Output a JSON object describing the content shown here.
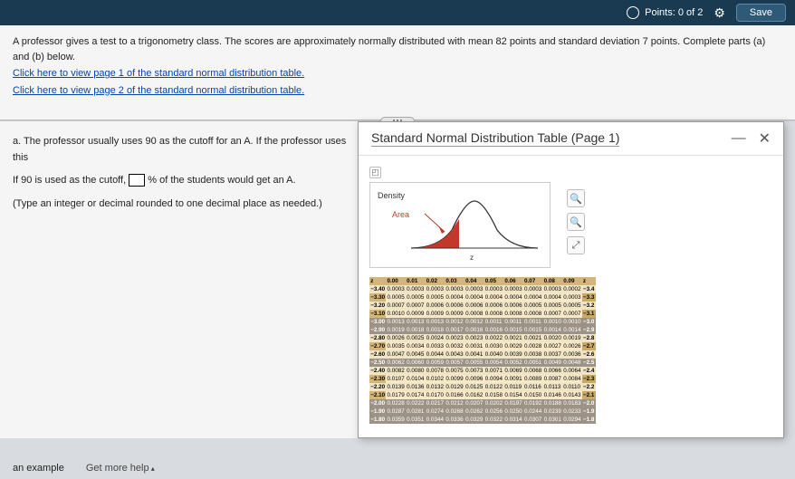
{
  "topbar": {
    "points": "Points: 0 of 2",
    "save": "Save"
  },
  "question": {
    "intro": "A professor gives a test to a trigonometry class. The scores are approximately normally distributed with mean 82 points and standard deviation 7 points. Complete parts (a) and (b) below.",
    "link1": "Click here to view page 1 of the standard normal distribution table.",
    "link2": "Click here to view page 2 of the standard normal distribution table.",
    "part_a": "a. The professor usually uses 90 as the cutoff for an A. If the professor uses this",
    "fill_pre": "If 90 is used as the cutoff, ",
    "fill_post": "% of the students would get an A.",
    "hint": "(Type an integer or decimal rounded to one decimal place as needed.)"
  },
  "popup": {
    "title": "Standard Normal Distribution Table (Page 1)",
    "density": "Density",
    "area": "Area",
    "z": "z"
  },
  "chart": {
    "curve_stroke": "#333",
    "curve_width": 1.2,
    "fill_color": "#c0392b",
    "arrow_color": "#c0392b",
    "bg": "#ffffff",
    "border": "#ccc"
  },
  "ztable": {
    "headers": [
      "z",
      "0.00",
      "0.01",
      "0.02",
      "0.03",
      "0.04",
      "0.05",
      "0.06",
      "0.07",
      "0.08",
      "0.09",
      "z"
    ],
    "rows": [
      {
        "z": "−3.40",
        "v": [
          "0.0003",
          "0.0003",
          "0.0003",
          "0.0003",
          "0.0003",
          "0.0003",
          "0.0003",
          "0.0003",
          "0.0003",
          "0.0002"
        ],
        "rz": "−3.4"
      },
      {
        "z": "−3.30",
        "v": [
          "0.0005",
          "0.0005",
          "0.0005",
          "0.0004",
          "0.0004",
          "0.0004",
          "0.0004",
          "0.0004",
          "0.0004",
          "0.0003"
        ],
        "rz": "−3.3"
      },
      {
        "z": "−3.20",
        "v": [
          "0.0007",
          "0.0007",
          "0.0006",
          "0.0006",
          "0.0006",
          "0.0006",
          "0.0006",
          "0.0005",
          "0.0005",
          "0.0005"
        ],
        "rz": "−3.2"
      },
      {
        "z": "−3.10",
        "v": [
          "0.0010",
          "0.0009",
          "0.0009",
          "0.0009",
          "0.0008",
          "0.0008",
          "0.0008",
          "0.0008",
          "0.0007",
          "0.0007"
        ],
        "rz": "−3.1"
      },
      {
        "z": "−3.00",
        "v": [
          "0.0013",
          "0.0013",
          "0.0013",
          "0.0012",
          "0.0012",
          "0.0011",
          "0.0011",
          "0.0011",
          "0.0010",
          "0.0010"
        ],
        "rz": "−3.0",
        "hl": true
      },
      {
        "z": "−2.90",
        "v": [
          "0.0019",
          "0.0018",
          "0.0018",
          "0.0017",
          "0.0016",
          "0.0016",
          "0.0015",
          "0.0015",
          "0.0014",
          "0.0014"
        ],
        "rz": "−2.9",
        "hl": true
      },
      {
        "z": "−2.80",
        "v": [
          "0.0026",
          "0.0025",
          "0.0024",
          "0.0023",
          "0.0023",
          "0.0022",
          "0.0021",
          "0.0021",
          "0.0020",
          "0.0019"
        ],
        "rz": "−2.8"
      },
      {
        "z": "−2.70",
        "v": [
          "0.0035",
          "0.0034",
          "0.0033",
          "0.0032",
          "0.0031",
          "0.0030",
          "0.0029",
          "0.0028",
          "0.0027",
          "0.0026"
        ],
        "rz": "−2.7"
      },
      {
        "z": "−2.60",
        "v": [
          "0.0047",
          "0.0045",
          "0.0044",
          "0.0043",
          "0.0041",
          "0.0040",
          "0.0039",
          "0.0038",
          "0.0037",
          "0.0036"
        ],
        "rz": "−2.6"
      },
      {
        "z": "−2.50",
        "v": [
          "0.0062",
          "0.0060",
          "0.0059",
          "0.0057",
          "0.0055",
          "0.0054",
          "0.0052",
          "0.0051",
          "0.0049",
          "0.0048"
        ],
        "rz": "−2.5",
        "hl": true
      },
      {
        "z": "−2.40",
        "v": [
          "0.0082",
          "0.0080",
          "0.0078",
          "0.0075",
          "0.0073",
          "0.0071",
          "0.0069",
          "0.0068",
          "0.0066",
          "0.0064"
        ],
        "rz": "−2.4"
      },
      {
        "z": "−2.30",
        "v": [
          "0.0107",
          "0.0104",
          "0.0102",
          "0.0099",
          "0.0096",
          "0.0094",
          "0.0091",
          "0.0089",
          "0.0087",
          "0.0084"
        ],
        "rz": "−2.3"
      },
      {
        "z": "−2.20",
        "v": [
          "0.0139",
          "0.0136",
          "0.0132",
          "0.0129",
          "0.0125",
          "0.0122",
          "0.0119",
          "0.0116",
          "0.0113",
          "0.0110"
        ],
        "rz": "−2.2"
      },
      {
        "z": "−2.10",
        "v": [
          "0.0179",
          "0.0174",
          "0.0170",
          "0.0166",
          "0.0162",
          "0.0158",
          "0.0154",
          "0.0150",
          "0.0146",
          "0.0143"
        ],
        "rz": "−2.1"
      },
      {
        "z": "−2.00",
        "v": [
          "0.0228",
          "0.0222",
          "0.0217",
          "0.0212",
          "0.0207",
          "0.0202",
          "0.0197",
          "0.0192",
          "0.0188",
          "0.0183"
        ],
        "rz": "−2.0",
        "hl": true
      },
      {
        "z": "−1.90",
        "v": [
          "0.0287",
          "0.0281",
          "0.0274",
          "0.0268",
          "0.0262",
          "0.0256",
          "0.0250",
          "0.0244",
          "0.0239",
          "0.0233"
        ],
        "rz": "−1.9",
        "hl": true
      },
      {
        "z": "−1.80",
        "v": [
          "0.0359",
          "0.0351",
          "0.0344",
          "0.0336",
          "0.0329",
          "0.0322",
          "0.0314",
          "0.0307",
          "0.0301",
          "0.0294"
        ],
        "rz": "−1.8",
        "hl": true
      }
    ]
  },
  "footer": {
    "example": "an example",
    "help": "Get more help"
  }
}
